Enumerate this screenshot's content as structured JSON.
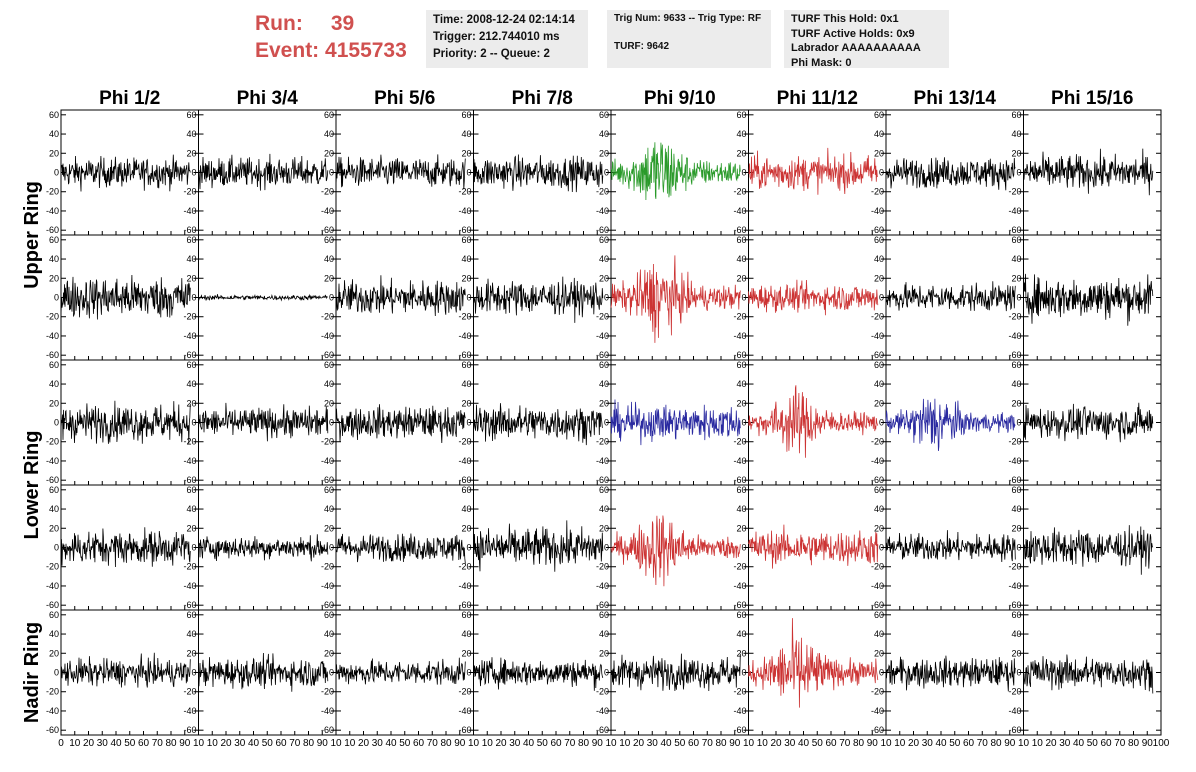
{
  "header": {
    "run_label": "Run:",
    "run_value": "39",
    "event_label": "Event:",
    "event_value": "4155733",
    "time_line": "Time: 2008-12-24 02:14:14",
    "trigger_line": "Trigger: 212.744010 ms",
    "priority_line": "Priority: 2 -- Queue: 2",
    "trig_line": "Trig Num: 9633 -- Trig Type: RF",
    "turf_line": "TURF: 9642",
    "turf_hold_line": "TURF This Hold: 0x1",
    "turf_active_line": "TURF Active Holds: 0x9",
    "labrador_line": "Labrador AAAAAAAAAA",
    "phi_mask_line": "Phi Mask: 0"
  },
  "chart_data": {
    "type": "line",
    "columns": [
      "Phi 1/2",
      "Phi 3/4",
      "Phi 5/6",
      "Phi 7/8",
      "Phi 9/10",
      "Phi 11/12",
      "Phi 13/14",
      "Phi 15/16"
    ],
    "row_labels": [
      "Upper Ring",
      "Lower Ring",
      "Nadir Ring"
    ],
    "panel_rows": 5,
    "xlim": [
      0,
      100
    ],
    "ylim": [
      -65,
      65
    ],
    "x_ticks": [
      0,
      10,
      20,
      30,
      40,
      50,
      60,
      70,
      80,
      90
    ],
    "x_tick_labels": [
      "0",
      "10",
      "20",
      "30",
      "40",
      "50",
      "60",
      "70",
      "80",
      "90"
    ],
    "x_last_tick_label": "100",
    "x_tick_label_last_panel_end": "10",
    "y_ticks": [
      -60,
      -40,
      -20,
      0,
      20,
      40,
      60
    ],
    "y_tick_labels": [
      "-60",
      "-40",
      "-20",
      "0",
      "20",
      "40",
      "60"
    ],
    "colors": {
      "default": "#000000",
      "green": "#2a9a2a",
      "red": "#cc3333",
      "blue": "#2a2aa0"
    },
    "panels": [
      [
        {
          "amp": 12,
          "color": "default"
        },
        {
          "amp": 12,
          "color": "default"
        },
        {
          "amp": 12,
          "color": "default"
        },
        {
          "amp": 13,
          "color": "default"
        },
        {
          "amp": 22,
          "color": "green",
          "burst": true
        },
        {
          "amp": 14,
          "color": "red"
        },
        {
          "amp": 12,
          "color": "default"
        },
        {
          "amp": 14,
          "color": "default"
        }
      ],
      [
        {
          "amp": 17,
          "color": "default"
        },
        {
          "amp": 2,
          "color": "default"
        },
        {
          "amp": 14,
          "color": "default"
        },
        {
          "amp": 14,
          "color": "default"
        },
        {
          "amp": 22,
          "color": "red",
          "burst": true
        },
        {
          "amp": 11,
          "color": "red"
        },
        {
          "amp": 11,
          "color": "default"
        },
        {
          "amp": 17,
          "color": "default"
        }
      ],
      [
        {
          "amp": 15,
          "color": "default"
        },
        {
          "amp": 12,
          "color": "default"
        },
        {
          "amp": 13,
          "color": "default"
        },
        {
          "amp": 14,
          "color": "default"
        },
        {
          "amp": 14,
          "color": "blue"
        },
        {
          "amp": 18,
          "color": "red",
          "burst": true
        },
        {
          "amp": 17,
          "color": "blue",
          "burst": true
        },
        {
          "amp": 13,
          "color": "default"
        }
      ],
      [
        {
          "amp": 14,
          "color": "default"
        },
        {
          "amp": 9,
          "color": "default"
        },
        {
          "amp": 11,
          "color": "default"
        },
        {
          "amp": 16,
          "color": "default"
        },
        {
          "amp": 20,
          "color": "red",
          "burst": true
        },
        {
          "amp": 14,
          "color": "red"
        },
        {
          "amp": 11,
          "color": "default"
        },
        {
          "amp": 15,
          "color": "default"
        }
      ],
      [
        {
          "amp": 11,
          "color": "default"
        },
        {
          "amp": 12,
          "color": "default"
        },
        {
          "amp": 10,
          "color": "default"
        },
        {
          "amp": 11,
          "color": "default"
        },
        {
          "amp": 13,
          "color": "default"
        },
        {
          "amp": 22,
          "color": "red",
          "burst": true
        },
        {
          "amp": 12,
          "color": "default"
        },
        {
          "amp": 13,
          "color": "default"
        }
      ]
    ]
  }
}
